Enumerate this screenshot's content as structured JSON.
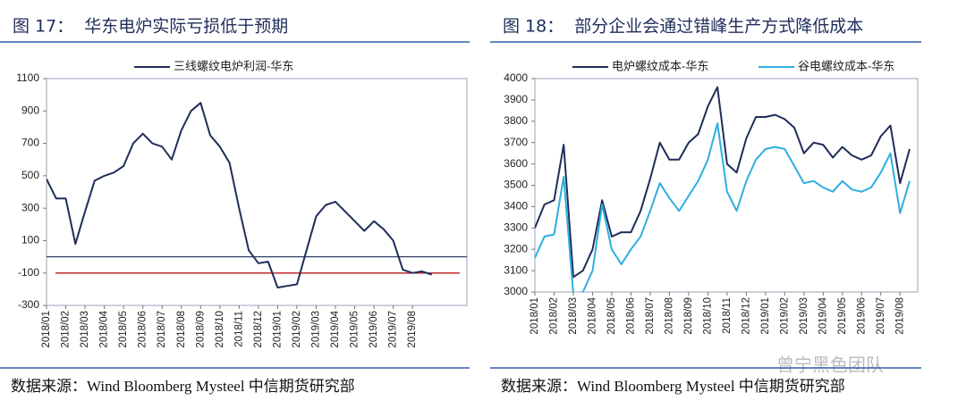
{
  "chart_data": [
    {
      "type": "line",
      "title": "图 17：  华东电炉实际亏损低于预期",
      "source": "数据来源：Wind Bloomberg Mysteel 中信期货研究部",
      "categories": [
        "2018/01",
        null,
        "2018/02",
        null,
        "2018/03",
        null,
        "2018/04",
        null,
        "2018/05",
        null,
        "2018/06",
        null,
        "2018/07",
        null,
        "2018/08",
        null,
        "2018/09",
        null,
        "2018/10",
        null,
        "2018/11",
        null,
        "2018/12",
        null,
        "2019/01",
        null,
        "2019/02",
        null,
        "2019/03",
        null,
        "2019/04",
        null,
        "2019/05",
        null,
        "2019/06",
        null,
        "2019/07",
        null,
        "2019/08",
        null,
        null,
        null,
        null,
        null
      ],
      "series": [
        {
          "name": "三线螺纹电炉利润-华东",
          "color": "#1f2d5a",
          "values": [
            480,
            360,
            360,
            80,
            280,
            470,
            500,
            520,
            560,
            700,
            760,
            700,
            680,
            600,
            780,
            900,
            950,
            750,
            680,
            580,
            300,
            40,
            -40,
            -30,
            -190,
            -180,
            -170,
            40,
            250,
            320,
            340,
            280,
            220,
            160,
            220,
            170,
            100,
            -80,
            -100,
            -90,
            -110,
            null,
            null,
            null
          ]
        }
      ],
      "ylim": [
        -300,
        1100
      ],
      "yticks": [
        1100,
        900,
        700,
        500,
        300,
        100,
        -100,
        -300
      ],
      "ref_line": {
        "value": -100,
        "color": "#c0282d"
      },
      "zero_line": true
    },
    {
      "type": "line",
      "title": "图 18：  部分企业会通过错峰生产方式降低成本",
      "source": "数据来源：Wind Bloomberg Mysteel 中信期货研究部",
      "categories": [
        "2018/01",
        null,
        "2018/02",
        null,
        "2018/03",
        null,
        "2018/04",
        null,
        "2018/05",
        null,
        "2018/06",
        null,
        "2018/07",
        null,
        "2018/08",
        null,
        "2018/09",
        null,
        "2018/10",
        null,
        "2018/11",
        null,
        "2018/12",
        null,
        "2019/01",
        null,
        "2019/02",
        null,
        "2019/03",
        null,
        "2019/04",
        null,
        "2019/05",
        null,
        "2019/06",
        null,
        "2019/07",
        null,
        "2019/08",
        null
      ],
      "series": [
        {
          "name": "电炉螺纹成本-华东",
          "color": "#1f2d5a",
          "values": [
            3300,
            3410,
            3430,
            3690,
            3070,
            3100,
            3200,
            3430,
            3260,
            3280,
            3280,
            3380,
            3530,
            3700,
            3620,
            3620,
            3700,
            3740,
            3870,
            3960,
            3600,
            3560,
            3720,
            3820,
            3820,
            3830,
            3810,
            3770,
            3650,
            3700,
            3690,
            3630,
            3680,
            3640,
            3620,
            3640,
            3730,
            3780,
            3510,
            3670
          ]
        },
        {
          "name": "谷电螺纹成本-华东",
          "color": "#2eaee0",
          "values": [
            3160,
            3260,
            3270,
            3540,
            2990,
            3000,
            3100,
            3410,
            3200,
            3130,
            3200,
            3260,
            3380,
            3510,
            3440,
            3380,
            3450,
            3520,
            3620,
            3790,
            3470,
            3380,
            3520,
            3620,
            3670,
            3680,
            3670,
            3590,
            3510,
            3520,
            3490,
            3470,
            3520,
            3480,
            3470,
            3490,
            3560,
            3650,
            3370,
            3520
          ]
        }
      ],
      "ylim": [
        3000,
        4000
      ],
      "yticks": [
        4000,
        3900,
        3800,
        3700,
        3600,
        3500,
        3400,
        3300,
        3200,
        3100,
        3000
      ]
    }
  ],
  "watermark": "曾宁黑色团队"
}
